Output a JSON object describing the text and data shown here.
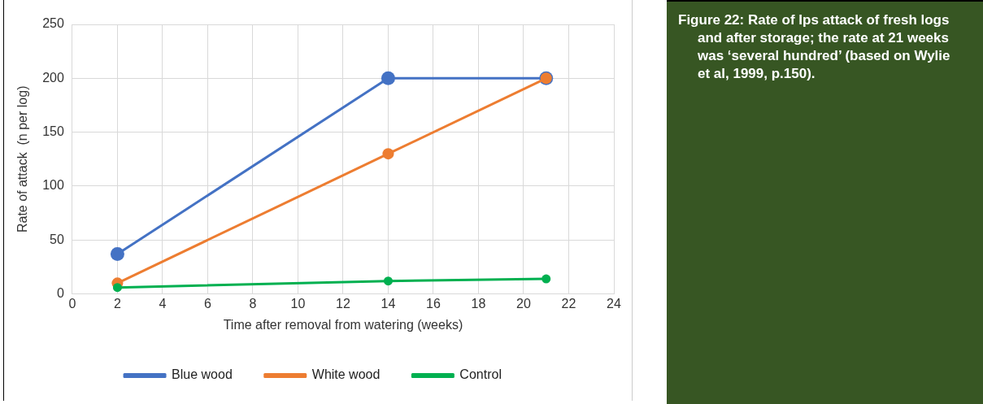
{
  "chart_data": {
    "type": "line",
    "xlabel": "Time after removal from watering (weeks)",
    "ylabel": "Rate of attack  (n per log)",
    "annotations": [
      "Figure 22: Rate of Ips attack of fresh logs and after storage; the rate at 21 weeks was ‘several hundred’ (based on Wylie et al, 1999, p.150)."
    ],
    "x": [
      2,
      14,
      21
    ],
    "series": [
      {
        "name": "Blue wood",
        "color": "#4472c4",
        "values": [
          37,
          200,
          200
        ]
      },
      {
        "name": "White wood",
        "color": "#ed7d31",
        "values": [
          10,
          130,
          200
        ]
      },
      {
        "name": "Control",
        "color": "#00b050",
        "values": [
          6,
          12,
          14
        ]
      }
    ],
    "xlim": [
      0,
      24
    ],
    "xticks": [
      0,
      2,
      4,
      6,
      8,
      10,
      12,
      14,
      16,
      18,
      20,
      22,
      24
    ],
    "ylim": [
      0,
      250
    ],
    "yticks": [
      0,
      50,
      100,
      150,
      200,
      250
    ],
    "grid": true,
    "legend": "bottom",
    "marker": "circle",
    "line_style": "solid"
  }
}
